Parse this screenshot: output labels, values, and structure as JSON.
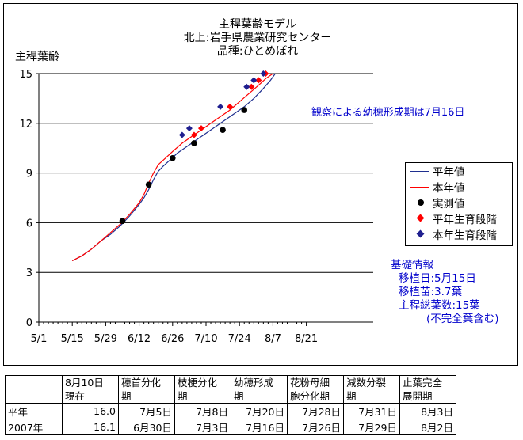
{
  "chart_data": {
    "type": "line",
    "title_lines": [
      "主稈葉齢モデル",
      "北上:岩手県農業研究センター",
      "品種:ひとめぼれ"
    ],
    "ylabel": "主稈葉齢",
    "ylim": [
      0,
      15
    ],
    "yticks": [
      "0",
      "3",
      "6",
      "9",
      "12",
      "15"
    ],
    "ytick_values": [
      0,
      3,
      6,
      9,
      12,
      15
    ],
    "xlim": [
      0,
      140
    ],
    "xticks": [
      "5/1",
      "5/15",
      "5/29",
      "6/12",
      "6/26",
      "7/10",
      "7/24",
      "8/7",
      "8/21"
    ],
    "xtick_values": [
      0,
      14,
      28,
      42,
      56,
      70,
      84,
      98,
      112
    ],
    "grid_y": true,
    "series": [
      {
        "name": "平年値",
        "kind": "line",
        "color": "#1f2f8f",
        "points": [
          [
            14,
            3.7
          ],
          [
            18,
            4.0
          ],
          [
            22,
            4.4
          ],
          [
            26,
            4.9
          ],
          [
            30,
            5.3
          ],
          [
            34,
            5.8
          ],
          [
            38,
            6.4
          ],
          [
            42,
            7.1
          ],
          [
            44,
            7.5
          ],
          [
            46,
            8.0
          ],
          [
            48,
            8.6
          ],
          [
            50,
            9.1
          ],
          [
            52,
            9.4
          ],
          [
            55,
            9.8
          ],
          [
            58,
            10.2
          ],
          [
            62,
            10.6
          ],
          [
            66,
            11.0
          ],
          [
            70,
            11.4
          ],
          [
            74,
            11.8
          ],
          [
            78,
            12.2
          ],
          [
            82,
            12.6
          ],
          [
            86,
            13.0
          ],
          [
            90,
            13.5
          ],
          [
            94,
            14.1
          ],
          [
            97,
            14.6
          ],
          [
            99,
            15.0
          ]
        ]
      },
      {
        "name": "本年値",
        "kind": "line",
        "color": "#ff0000",
        "points": [
          [
            14,
            3.7
          ],
          [
            18,
            4.0
          ],
          [
            22,
            4.4
          ],
          [
            26,
            4.9
          ],
          [
            30,
            5.4
          ],
          [
            34,
            5.9
          ],
          [
            38,
            6.5
          ],
          [
            42,
            7.2
          ],
          [
            44,
            7.7
          ],
          [
            46,
            8.4
          ],
          [
            48,
            9.0
          ],
          [
            50,
            9.5
          ],
          [
            53,
            9.9
          ],
          [
            56,
            10.3
          ],
          [
            60,
            10.8
          ],
          [
            64,
            11.2
          ],
          [
            68,
            11.6
          ],
          [
            72,
            12.0
          ],
          [
            76,
            12.4
          ],
          [
            80,
            12.8
          ],
          [
            84,
            13.3
          ],
          [
            88,
            13.8
          ],
          [
            92,
            14.3
          ],
          [
            95,
            14.7
          ],
          [
            98,
            15.0
          ]
        ]
      },
      {
        "name": "実測値",
        "kind": "dot",
        "color": "#000000",
        "points": [
          [
            35,
            6.1
          ],
          [
            46,
            8.3
          ],
          [
            56,
            9.9
          ],
          [
            65,
            10.8
          ],
          [
            77,
            11.6
          ],
          [
            86,
            12.8
          ]
        ]
      },
      {
        "name": "平年生育段階",
        "kind": "diamond",
        "color": "#ff0000",
        "points": [
          [
            65,
            11.3
          ],
          [
            68,
            11.7
          ],
          [
            80,
            13.0
          ],
          [
            89,
            14.2
          ],
          [
            92,
            14.6
          ],
          [
            95,
            15.0
          ]
        ]
      },
      {
        "name": "本年生育段階",
        "kind": "diamond",
        "color": "#1f1f8f",
        "points": [
          [
            60,
            11.3
          ],
          [
            63,
            11.7
          ],
          [
            76,
            13.0
          ],
          [
            87,
            14.2
          ],
          [
            90,
            14.6
          ],
          [
            94,
            15.0
          ]
        ]
      }
    ],
    "annotation": "観察による幼穂形成期は7月16日",
    "legend_position": "right"
  },
  "basic_info": {
    "title": "基礎情報",
    "lines": [
      "移植日:5月15日",
      "移植苗:3.7葉",
      "主稈総葉数:15葉",
      "(不完全葉含む)"
    ]
  },
  "table": {
    "headers": [
      [
        "",
        ""
      ],
      [
        "8月10日",
        "現在"
      ],
      [
        "穂首分化",
        "期"
      ],
      [
        "枝梗分化",
        "期"
      ],
      [
        "幼穂形成",
        "期"
      ],
      [
        "花粉母細",
        "胞分化期"
      ],
      [
        "減数分裂",
        "期"
      ],
      [
        "止葉完全",
        "展開期"
      ]
    ],
    "rows": [
      [
        "平年",
        "16.0",
        "7月5日",
        "7月8日",
        "7月20日",
        "7月28日",
        "7月31日",
        "8月3日"
      ],
      [
        "2007年",
        "16.1",
        "6月30日",
        "7月3日",
        "7月16日",
        "7月26日",
        "7月29日",
        "8月2日"
      ]
    ]
  }
}
